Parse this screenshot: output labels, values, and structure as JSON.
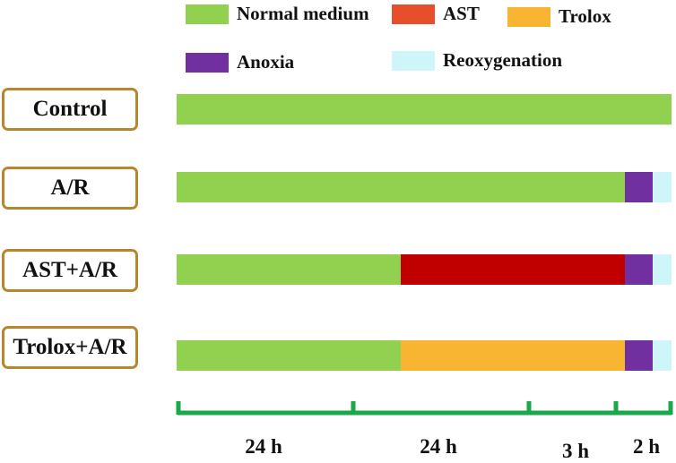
{
  "legend": [
    {
      "key": "normal",
      "label": "Normal medium",
      "color": "#92d050"
    },
    {
      "key": "ast",
      "label": "AST",
      "color": "#e64f2b"
    },
    {
      "key": "trolox",
      "label": "Trolox",
      "color": "#f8b531"
    },
    {
      "key": "anoxia",
      "label": "Anoxia",
      "color": "#7030a0"
    },
    {
      "key": "reox",
      "label": "Reoxygenation",
      "color": "#cdf5fa"
    }
  ],
  "bar_colors": {
    "normal": "#92d050",
    "ast": "#c00000",
    "trolox": "#f8b531",
    "anoxia": "#7030a0",
    "reox": "#cdf5fa"
  },
  "groups": [
    {
      "label": "Control",
      "segments": [
        {
          "phase": "normal",
          "hours": 53
        }
      ]
    },
    {
      "label": "A/R",
      "segments": [
        {
          "phase": "normal",
          "hours": 48
        },
        {
          "phase": "anoxia",
          "hours": 3
        },
        {
          "phase": "reox",
          "hours": 2
        }
      ]
    },
    {
      "label": "AST+A/R",
      "segments": [
        {
          "phase": "normal",
          "hours": 24
        },
        {
          "phase": "ast",
          "hours": 24
        },
        {
          "phase": "anoxia",
          "hours": 3
        },
        {
          "phase": "reox",
          "hours": 2
        }
      ]
    },
    {
      "label": "Trolox+A/R",
      "segments": [
        {
          "phase": "normal",
          "hours": 24
        },
        {
          "phase": "trolox",
          "hours": 24
        },
        {
          "phase": "anoxia",
          "hours": 3
        },
        {
          "phase": "reox",
          "hours": 2
        }
      ]
    }
  ],
  "timeline": {
    "color": "#1aa84a",
    "intervals": [
      {
        "label": "24 h"
      },
      {
        "label": "24 h"
      },
      {
        "label": "3 h"
      },
      {
        "label": "2 h"
      }
    ]
  }
}
